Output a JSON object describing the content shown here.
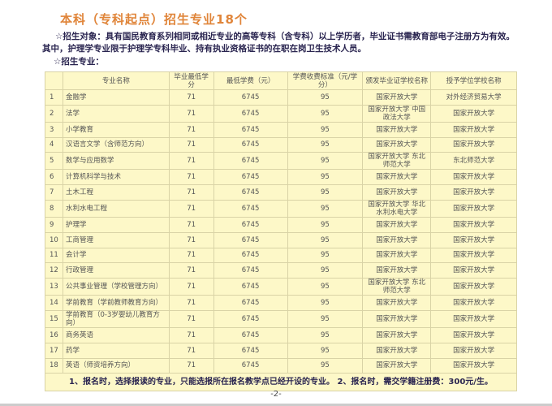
{
  "title": "本科（专科起点）招生专业18个",
  "intro": "☆招生对象：具有国民教育系列相同或相近专业的高等专科（含专科）以上学历者，毕业证书需教育部电子注册方为有效。其中，护理学专业限于护理学专科毕业、持有执业资格证书的在职在岗卫生技术人员。",
  "majors_label": "☆招生专业：",
  "table": {
    "headers": [
      "",
      "专业名称",
      "毕业最低学分",
      "最低学费（元）",
      "学费收费标准（元/学分）",
      "颁发毕业证学校名称",
      "授予学位学校名称"
    ],
    "rows": [
      [
        "1",
        "金融学",
        "71",
        "6745",
        "95",
        "国家开放大学",
        "对外经济贸易大学"
      ],
      [
        "2",
        "法学",
        "71",
        "6745",
        "95",
        "国家开放大学 中国政法大学",
        "国家开放大学"
      ],
      [
        "3",
        "小学教育",
        "71",
        "6745",
        "95",
        "国家开放大学",
        "国家开放大学"
      ],
      [
        "4",
        "汉语言文学（含师范方向）",
        "71",
        "6745",
        "95",
        "国家开放大学",
        "国家开放大学"
      ],
      [
        "5",
        "数学与应用数学",
        "71",
        "6745",
        "95",
        "国家开放大学 东北师范大学",
        "东北师范大学"
      ],
      [
        "6",
        "计算机科学与技术",
        "71",
        "6745",
        "95",
        "国家开放大学",
        "国家开放大学"
      ],
      [
        "7",
        "土木工程",
        "71",
        "6745",
        "95",
        "国家开放大学",
        "国家开放大学"
      ],
      [
        "8",
        "水利水电工程",
        "71",
        "6745",
        "95",
        "国家开放大学 华北水利水电大学",
        "国家开放大学"
      ],
      [
        "9",
        "护理学",
        "71",
        "6745",
        "95",
        "国家开放大学",
        "国家开放大学"
      ],
      [
        "10",
        "工商管理",
        "71",
        "6745",
        "95",
        "国家开放大学",
        "国家开放大学"
      ],
      [
        "11",
        "会计学",
        "71",
        "6745",
        "95",
        "国家开放大学",
        "国家开放大学"
      ],
      [
        "12",
        "行政管理",
        "71",
        "6745",
        "95",
        "国家开放大学",
        "国家开放大学"
      ],
      [
        "13",
        "公共事业管理（学校管理方向）",
        "71",
        "6745",
        "95",
        "国家开放大学 东北师范大学",
        "国家开放大学"
      ],
      [
        "14",
        "学前教育（学前教师教育方向）",
        "71",
        "6745",
        "95",
        "国家开放大学",
        "国家开放大学"
      ],
      [
        "15",
        "学前教育（0-3岁婴幼儿教育方向）",
        "71",
        "6745",
        "95",
        "国家开放大学",
        "国家开放大学"
      ],
      [
        "16",
        "商务英语",
        "71",
        "6745",
        "95",
        "国家开放大学",
        "国家开放大学"
      ],
      [
        "17",
        "药学",
        "71",
        "6745",
        "95",
        "国家开放大学",
        "国家开放大学"
      ],
      [
        "18",
        "英语（师资培养方向）",
        "71",
        "6745",
        "95",
        "国家开放大学",
        "国家开放大学"
      ]
    ],
    "footer": "1、报名时，选择报读的专业，只能选报所在报名教学点已经开设的专业。 2、报名时，需交学籍注册费：300元/生。"
  },
  "page_number": "-2-"
}
